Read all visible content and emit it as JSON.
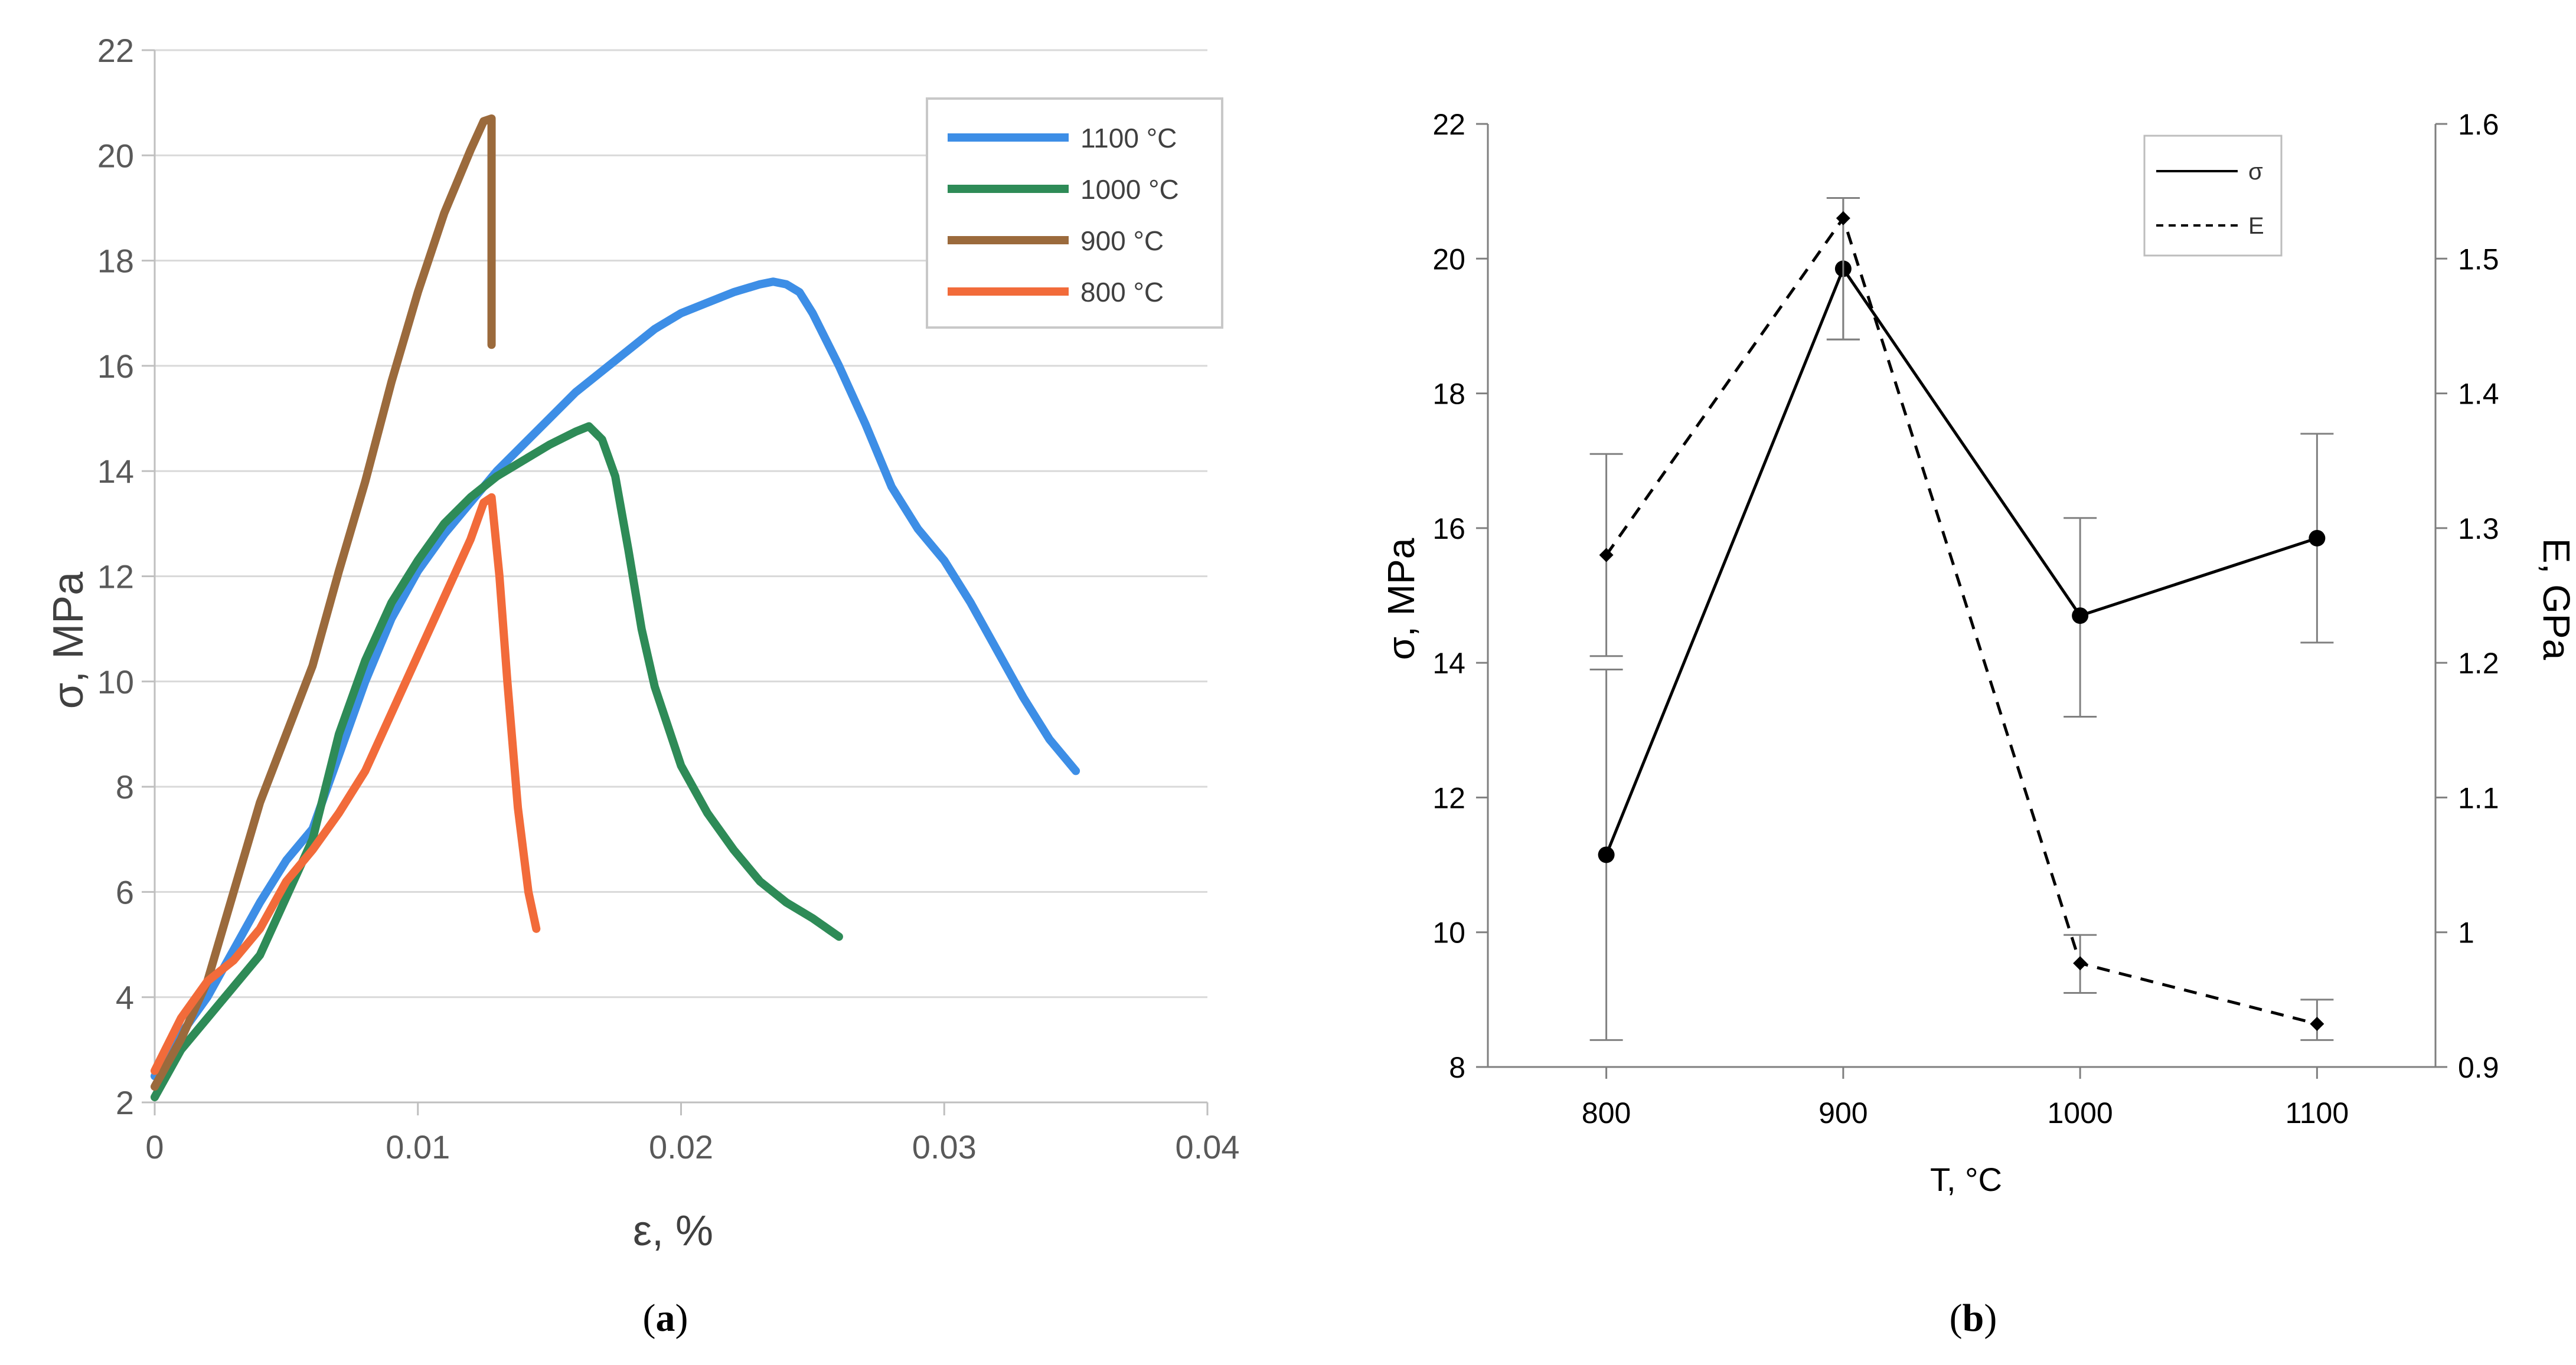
{
  "chart_data": [
    {
      "id": "a",
      "type": "line",
      "panel_label": "(a)",
      "panel_label_parts": {
        "open": "(",
        "letter": "a",
        "close": ")"
      },
      "xlabel": "ε, %",
      "ylabel": "σ, MPa",
      "xlim": [
        0,
        0.04
      ],
      "ylim": [
        2,
        22
      ],
      "x_ticks": [
        0,
        0.01,
        0.02,
        0.03,
        0.04
      ],
      "x_tick_labels": [
        "0",
        "0.01",
        "0.02",
        "0.03",
        "0.04"
      ],
      "y_ticks": [
        2,
        4,
        6,
        8,
        10,
        12,
        14,
        16,
        18,
        20,
        22
      ],
      "y_tick_labels": [
        "2",
        "4",
        "6",
        "8",
        "10",
        "12",
        "14",
        "16",
        "18",
        "20",
        "22"
      ],
      "grid": "horizontal",
      "legend_position": "top-right",
      "series": [
        {
          "name": "1100 °C",
          "color": "#3d8ee6",
          "x": [
            0,
            0.001,
            0.002,
            0.003,
            0.004,
            0.005,
            0.0055,
            0.006,
            0.007,
            0.008,
            0.009,
            0.01,
            0.011,
            0.012,
            0.013,
            0.014,
            0.015,
            0.016,
            0.017,
            0.018,
            0.019,
            0.02,
            0.021,
            0.022,
            0.023,
            0.0235,
            0.024,
            0.0245,
            0.025,
            0.026,
            0.027,
            0.028,
            0.029,
            0.03,
            0.031,
            0.032,
            0.033,
            0.034,
            0.035
          ],
          "y": [
            2.5,
            3.3,
            4.0,
            4.9,
            5.8,
            6.6,
            6.9,
            7.2,
            8.6,
            10.0,
            11.2,
            12.1,
            12.8,
            13.4,
            14.0,
            14.5,
            15.0,
            15.5,
            15.9,
            16.3,
            16.7,
            17.0,
            17.2,
            17.4,
            17.55,
            17.6,
            17.55,
            17.4,
            17.0,
            16.0,
            14.9,
            13.7,
            12.9,
            12.3,
            11.5,
            10.6,
            9.7,
            8.9,
            8.3
          ]
        },
        {
          "name": "1000 °C",
          "color": "#2e8b57",
          "x": [
            0,
            0.001,
            0.002,
            0.003,
            0.004,
            0.005,
            0.006,
            0.007,
            0.008,
            0.009,
            0.01,
            0.011,
            0.012,
            0.013,
            0.014,
            0.015,
            0.016,
            0.0165,
            0.017,
            0.0175,
            0.018,
            0.0185,
            0.019,
            0.02,
            0.021,
            0.022,
            0.023,
            0.024,
            0.025,
            0.026
          ],
          "y": [
            2.1,
            3.0,
            3.6,
            4.2,
            4.8,
            5.9,
            7.0,
            9.0,
            10.4,
            11.5,
            12.3,
            13.0,
            13.5,
            13.9,
            14.2,
            14.5,
            14.75,
            14.85,
            14.6,
            13.9,
            12.5,
            11.0,
            9.9,
            8.4,
            7.5,
            6.8,
            6.2,
            5.8,
            5.5,
            5.15
          ]
        },
        {
          "name": "900 °C",
          "color": "#9b6a3c",
          "x": [
            0,
            0.001,
            0.002,
            0.003,
            0.004,
            0.005,
            0.006,
            0.007,
            0.008,
            0.009,
            0.01,
            0.011,
            0.012,
            0.0125,
            0.0128,
            0.0128,
            0.0128
          ],
          "y": [
            2.3,
            3.2,
            4.3,
            6.0,
            7.7,
            9.0,
            10.3,
            12.1,
            13.8,
            15.7,
            17.4,
            18.9,
            20.1,
            20.65,
            20.7,
            18.5,
            16.4
          ]
        },
        {
          "name": "800 °C",
          "color": "#f26b3a",
          "x": [
            0,
            0.001,
            0.002,
            0.003,
            0.004,
            0.005,
            0.006,
            0.007,
            0.008,
            0.009,
            0.01,
            0.011,
            0.012,
            0.0125,
            0.0128,
            0.0131,
            0.0134,
            0.0138,
            0.0142,
            0.0145
          ],
          "y": [
            2.6,
            3.6,
            4.3,
            4.7,
            5.3,
            6.2,
            6.8,
            7.5,
            8.3,
            9.4,
            10.5,
            11.6,
            12.7,
            13.4,
            13.5,
            12.0,
            10.0,
            7.6,
            6.0,
            5.3
          ]
        }
      ]
    },
    {
      "id": "b",
      "type": "line",
      "panel_label": "(b)",
      "panel_label_parts": {
        "open": "(",
        "letter": "b",
        "close": ")"
      },
      "xlabel": "T, °C",
      "ylabel": "σ, MPa",
      "ylabel_right": "E, GPa",
      "categories": [
        "800",
        "900",
        "1000",
        "1100"
      ],
      "x": [
        800,
        900,
        1000,
        1100
      ],
      "xlim": [
        750,
        1150
      ],
      "ylim": [
        8,
        22
      ],
      "ylim_right": [
        0.9,
        1.6
      ],
      "y_ticks": [
        8,
        10,
        12,
        14,
        16,
        18,
        20,
        22
      ],
      "y_tick_labels": [
        "8",
        "10",
        "12",
        "14",
        "16",
        "18",
        "20",
        "22"
      ],
      "y_right_ticks": [
        0.9,
        1.0,
        1.1,
        1.2,
        1.3,
        1.4,
        1.5,
        1.6
      ],
      "y_right_tick_labels": [
        "0.9",
        "1",
        "1.1",
        "1.2",
        "1.3",
        "1.4",
        "1.5",
        "1.6"
      ],
      "grid": "none",
      "legend_position": "top-right",
      "series": [
        {
          "name": "σ",
          "axis": "left",
          "style": "solid",
          "marker": "circle",
          "color": "#000000",
          "values": [
            11.15,
            19.85,
            14.7,
            15.85
          ],
          "err_low": [
            8.4,
            18.8,
            13.2,
            14.3
          ],
          "err_high": [
            13.9,
            20.9,
            16.15,
            17.4
          ]
        },
        {
          "name": "E",
          "axis": "right",
          "style": "dashed",
          "marker": "diamond",
          "color": "#000000",
          "values": [
            1.28,
            1.53,
            0.977,
            0.932
          ],
          "err_low": [
            1.205,
            1.44,
            0.955,
            0.92
          ],
          "err_high": [
            1.355,
            1.545,
            0.998,
            0.95
          ]
        }
      ]
    }
  ]
}
